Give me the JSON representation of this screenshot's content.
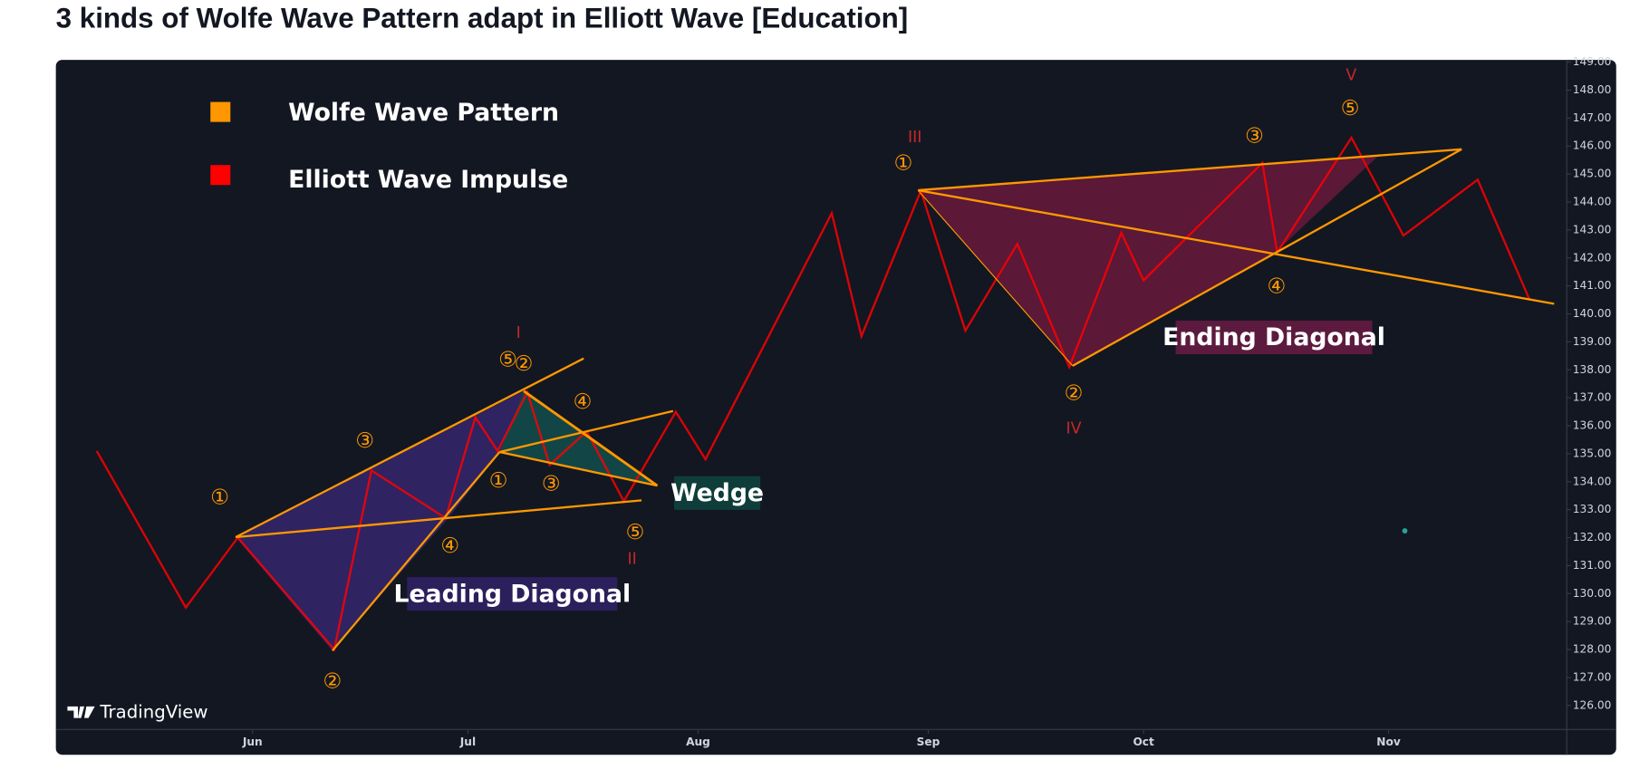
{
  "chart_data": {
    "type": "line",
    "title": "3 kinds of Wolfe Wave Pattern adapt in Elliott Wave [Education]",
    "x": [
      10,
      22,
      29,
      42,
      47,
      57,
      61,
      64,
      68,
      71,
      76,
      81,
      88,
      92,
      109,
      113,
      121,
      127,
      134,
      141,
      148,
      151,
      167,
      169,
      179,
      186,
      196,
      203
    ],
    "series": [
      {
        "name": "Elliott Wave Impulse",
        "color": "#ff0000",
        "values": [
          135.1,
          129.5,
          132.0,
          128.0,
          134.4,
          132.7,
          136.3,
          135.1,
          137.2,
          134.6,
          135.8,
          133.3,
          136.5,
          134.8,
          143.6,
          139.2,
          144.4,
          139.4,
          142.5,
          138.1,
          142.9,
          141.2,
          145.4,
          142.2,
          146.3,
          142.8,
          144.8,
          140.5
        ]
      }
    ],
    "drawings": {
      "name": "Wolfe Wave Pattern",
      "color": "#ff9800"
    },
    "xlim": [
      4.5,
      208
    ],
    "xticks": [
      {
        "value": 31,
        "label": "Jun"
      },
      {
        "value": 60,
        "label": "Jul"
      },
      {
        "value": 91,
        "label": "Aug"
      },
      {
        "value": 122,
        "label": "Sep"
      },
      {
        "value": 151,
        "label": "Oct"
      },
      {
        "value": 184,
        "label": "Nov"
      }
    ],
    "ylim": [
      125.14,
      149.08
    ],
    "yticks": [
      {
        "value": 126,
        "label": "126.00"
      },
      {
        "value": 127,
        "label": "127.00"
      },
      {
        "value": 128,
        "label": "128.00"
      },
      {
        "value": 129,
        "label": "129.00"
      },
      {
        "value": 130,
        "label": "130.00"
      },
      {
        "value": 131,
        "label": "131.00"
      },
      {
        "value": 132,
        "label": "132.00"
      },
      {
        "value": 133,
        "label": "133.00"
      },
      {
        "value": 134,
        "label": "134.00"
      },
      {
        "value": 135,
        "label": "135.00"
      },
      {
        "value": 136,
        "label": "136.00"
      },
      {
        "value": 137,
        "label": "137.00"
      },
      {
        "value": 138,
        "label": "138.00"
      },
      {
        "value": 139,
        "label": "139.00"
      },
      {
        "value": 140,
        "label": "140.00"
      },
      {
        "value": 141,
        "label": "141.00"
      },
      {
        "value": 142,
        "label": "142.00"
      },
      {
        "value": 143,
        "label": "143.00"
      },
      {
        "value": 144,
        "label": "144.00"
      },
      {
        "value": 145,
        "label": "145.00"
      },
      {
        "value": 146,
        "label": "146.00"
      },
      {
        "value": 147,
        "label": "147.00"
      },
      {
        "value": 148,
        "label": "148.00"
      },
      {
        "value": 149,
        "label": "149.00"
      }
    ],
    "grid": false,
    "annotations": [
      "Leading Diagonal",
      "Wedge",
      "Ending Diagonal"
    ],
    "wave_labels": [
      "I",
      "II",
      "III",
      "IV",
      "V"
    ],
    "wave_counts": [
      "①",
      "②",
      "③",
      "④",
      "⑤",
      "②",
      "①",
      "③",
      "④",
      "⑤",
      "①",
      "②",
      "③",
      "④",
      "⑤"
    ],
    "watermark": "TradingView"
  }
}
